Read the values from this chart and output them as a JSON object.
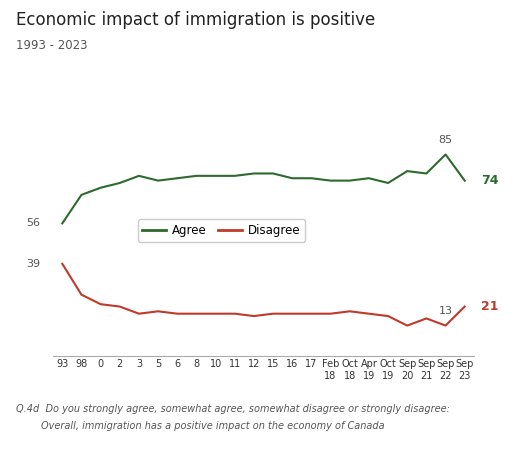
{
  "title": "Economic impact of immigration is positive",
  "subtitle": "1993 - 2023",
  "x_labels": [
    "93",
    "98",
    "0",
    "2",
    "3",
    "5",
    "6",
    "8",
    "10",
    "11",
    "12",
    "15",
    "16",
    "17",
    "Feb\n18",
    "Oct\n18",
    "Apr\n19",
    "Oct\n19",
    "Sep\n20",
    "Sep\n21",
    "Sep\n22",
    "Sep\n23"
  ],
  "agree_values": [
    56,
    68,
    71,
    73,
    76,
    74,
    75,
    76,
    76,
    76,
    77,
    77,
    75,
    75,
    74,
    74,
    75,
    73,
    78,
    77,
    85,
    74
  ],
  "disagree_values": [
    39,
    26,
    22,
    21,
    18,
    19,
    18,
    18,
    18,
    18,
    17,
    18,
    18,
    18,
    18,
    19,
    18,
    17,
    13,
    16,
    13,
    21
  ],
  "agree_color": "#2d6a2d",
  "disagree_color": "#c0392b",
  "background_color": "#ffffff",
  "footnote_line1": "Q.4d  Do you strongly agree, somewhat agree, somewhat disagree or strongly disagree:",
  "footnote_line2": "        Overall, immigration has a positive impact on the economy of Canada",
  "ylim": [
    0,
    100
  ],
  "legend_labels": [
    "Agree",
    "Disagree"
  ]
}
